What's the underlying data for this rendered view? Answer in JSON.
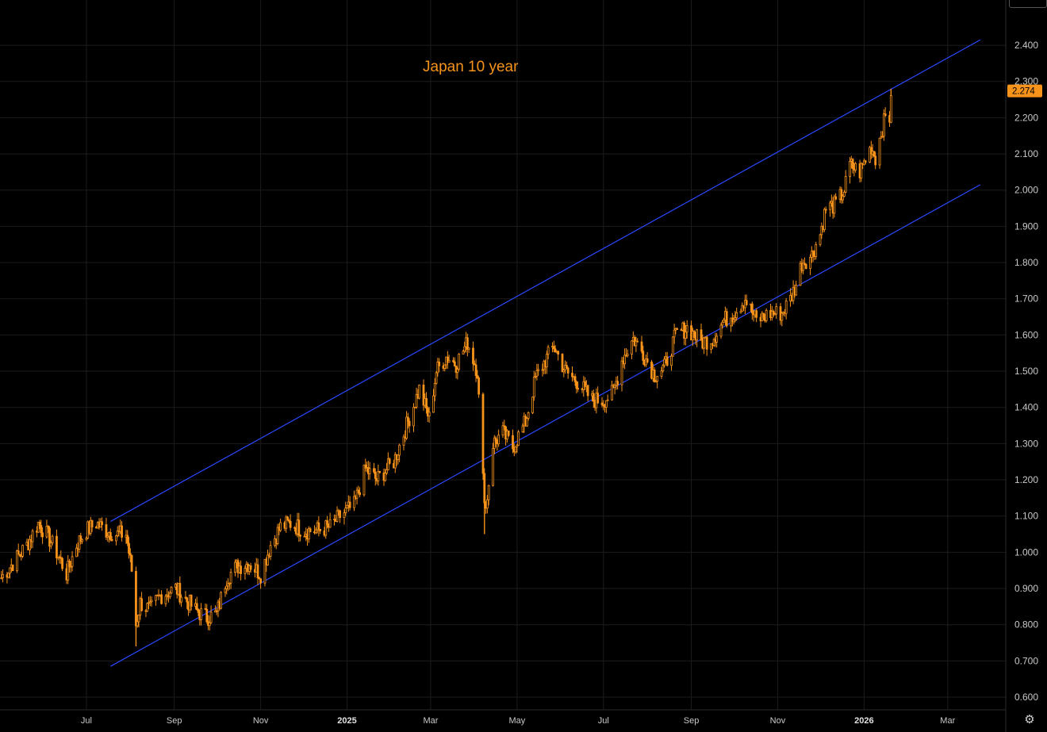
{
  "chart_data": {
    "type": "candlestick",
    "title": "Japan 10 year",
    "last_price": "2.274",
    "ylim": [
      0.565,
      2.525
    ],
    "yticks": [
      "0.600",
      "0.700",
      "0.800",
      "0.900",
      "1.000",
      "1.100",
      "1.200",
      "1.300",
      "1.400",
      "1.500",
      "1.600",
      "1.700",
      "1.800",
      "1.900",
      "2.000",
      "2.100",
      "2.200",
      "2.300",
      "2.400"
    ],
    "xticks": [
      {
        "label": "Jul",
        "date": "2024-07-01"
      },
      {
        "label": "Sep",
        "date": "2024-09-01"
      },
      {
        "label": "Nov",
        "date": "2024-11-01"
      },
      {
        "label": "2025",
        "date": "2025-01-01",
        "major": true
      },
      {
        "label": "Mar",
        "date": "2025-03-01"
      },
      {
        "label": "May",
        "date": "2025-05-01"
      },
      {
        "label": "Jul",
        "date": "2025-07-01"
      },
      {
        "label": "Sep",
        "date": "2025-09-01"
      },
      {
        "label": "Nov",
        "date": "2025-11-01"
      },
      {
        "label": "2026",
        "date": "2026-01-01",
        "major": true
      },
      {
        "label": "Mar",
        "date": "2026-03-01"
      }
    ],
    "xlim": [
      "2024-05-01",
      "2026-04-11"
    ],
    "grid": true,
    "colors": {
      "candle": "#f7931a",
      "trendline": "#2948ff",
      "grid": "#1c1c1c",
      "background": "#000000"
    },
    "trendlines": [
      {
        "start": {
          "date": "2024-07-18",
          "y": 1.085
        },
        "end": {
          "date": "2026-03-24",
          "y": 2.415
        }
      },
      {
        "start": {
          "date": "2024-07-18",
          "y": 0.685
        },
        "end": {
          "date": "2026-03-24",
          "y": 2.015
        }
      }
    ],
    "series_anchors": [
      [
        "2024-05-02",
        0.93
      ],
      [
        "2024-05-10",
        0.97
      ],
      [
        "2024-05-20",
        1.02
      ],
      [
        "2024-05-28",
        1.08
      ],
      [
        "2024-06-03",
        1.05
      ],
      [
        "2024-06-10",
        1.0
      ],
      [
        "2024-06-17",
        0.94
      ],
      [
        "2024-06-24",
        1.02
      ],
      [
        "2024-07-01",
        1.06
      ],
      [
        "2024-07-08",
        1.08
      ],
      [
        "2024-07-15",
        1.06
      ],
      [
        "2024-07-22",
        1.05
      ],
      [
        "2024-07-29",
        1.05
      ],
      [
        "2024-08-02",
        0.95
      ],
      [
        "2024-08-05",
        0.8
      ],
      [
        "2024-08-08",
        0.86
      ],
      [
        "2024-08-15",
        0.84
      ],
      [
        "2024-08-22",
        0.88
      ],
      [
        "2024-09-02",
        0.9
      ],
      [
        "2024-09-09",
        0.87
      ],
      [
        "2024-09-16",
        0.84
      ],
      [
        "2024-09-24",
        0.82
      ],
      [
        "2024-10-01",
        0.83
      ],
      [
        "2024-10-08",
        0.93
      ],
      [
        "2024-10-15",
        0.96
      ],
      [
        "2024-10-24",
        0.97
      ],
      [
        "2024-11-01",
        0.94
      ],
      [
        "2024-11-08",
        1.02
      ],
      [
        "2024-11-15",
        1.07
      ],
      [
        "2024-11-22",
        1.08
      ],
      [
        "2024-12-02",
        1.06
      ],
      [
        "2024-12-10",
        1.06
      ],
      [
        "2024-12-20",
        1.07
      ],
      [
        "2024-12-27",
        1.1
      ],
      [
        "2025-01-06",
        1.13
      ],
      [
        "2025-01-14",
        1.23
      ],
      [
        "2025-01-22",
        1.2
      ],
      [
        "2025-02-03",
        1.25
      ],
      [
        "2025-02-12",
        1.35
      ],
      [
        "2025-02-21",
        1.45
      ],
      [
        "2025-02-28",
        1.37
      ],
      [
        "2025-03-05",
        1.5
      ],
      [
        "2025-03-12",
        1.54
      ],
      [
        "2025-03-19",
        1.52
      ],
      [
        "2025-03-27",
        1.58
      ],
      [
        "2025-04-03",
        1.5
      ],
      [
        "2025-04-07",
        1.2
      ],
      [
        "2025-04-09",
        1.12
      ],
      [
        "2025-04-14",
        1.3
      ],
      [
        "2025-04-21",
        1.33
      ],
      [
        "2025-04-28",
        1.29
      ],
      [
        "2025-05-07",
        1.36
      ],
      [
        "2025-05-14",
        1.48
      ],
      [
        "2025-05-21",
        1.53
      ],
      [
        "2025-05-27",
        1.57
      ],
      [
        "2025-06-04",
        1.5
      ],
      [
        "2025-06-13",
        1.47
      ],
      [
        "2025-06-23",
        1.42
      ],
      [
        "2025-07-01",
        1.42
      ],
      [
        "2025-07-08",
        1.44
      ],
      [
        "2025-07-14",
        1.53
      ],
      [
        "2025-07-22",
        1.59
      ],
      [
        "2025-07-29",
        1.55
      ],
      [
        "2025-08-06",
        1.49
      ],
      [
        "2025-08-13",
        1.51
      ],
      [
        "2025-08-21",
        1.6
      ],
      [
        "2025-08-29",
        1.62
      ],
      [
        "2025-09-08",
        1.58
      ],
      [
        "2025-09-16",
        1.59
      ],
      [
        "2025-09-24",
        1.64
      ],
      [
        "2025-10-01",
        1.66
      ],
      [
        "2025-10-09",
        1.7
      ],
      [
        "2025-10-17",
        1.64
      ],
      [
        "2025-10-27",
        1.66
      ],
      [
        "2025-11-04",
        1.66
      ],
      [
        "2025-11-10",
        1.7
      ],
      [
        "2025-11-14",
        1.74
      ],
      [
        "2025-11-18",
        1.8
      ],
      [
        "2025-11-25",
        1.82
      ],
      [
        "2025-12-01",
        1.88
      ],
      [
        "2025-12-05",
        1.95
      ],
      [
        "2025-12-12",
        1.96
      ],
      [
        "2025-12-18",
        2.0
      ],
      [
        "2025-12-22",
        2.07
      ],
      [
        "2025-12-29",
        2.05
      ],
      [
        "2026-01-06",
        2.12
      ],
      [
        "2026-01-09",
        2.09
      ],
      [
        "2026-01-13",
        2.16
      ],
      [
        "2026-01-16",
        2.2
      ],
      [
        "2026-01-19",
        2.2
      ],
      [
        "2026-01-20",
        2.274
      ]
    ],
    "wicks": [
      {
        "date": "2024-08-05",
        "low": 0.74
      },
      {
        "date": "2025-04-08",
        "low": 1.05
      },
      {
        "date": "2026-01-20",
        "high": 2.28
      }
    ]
  },
  "ui": {
    "settings_icon": "gear-icon"
  }
}
